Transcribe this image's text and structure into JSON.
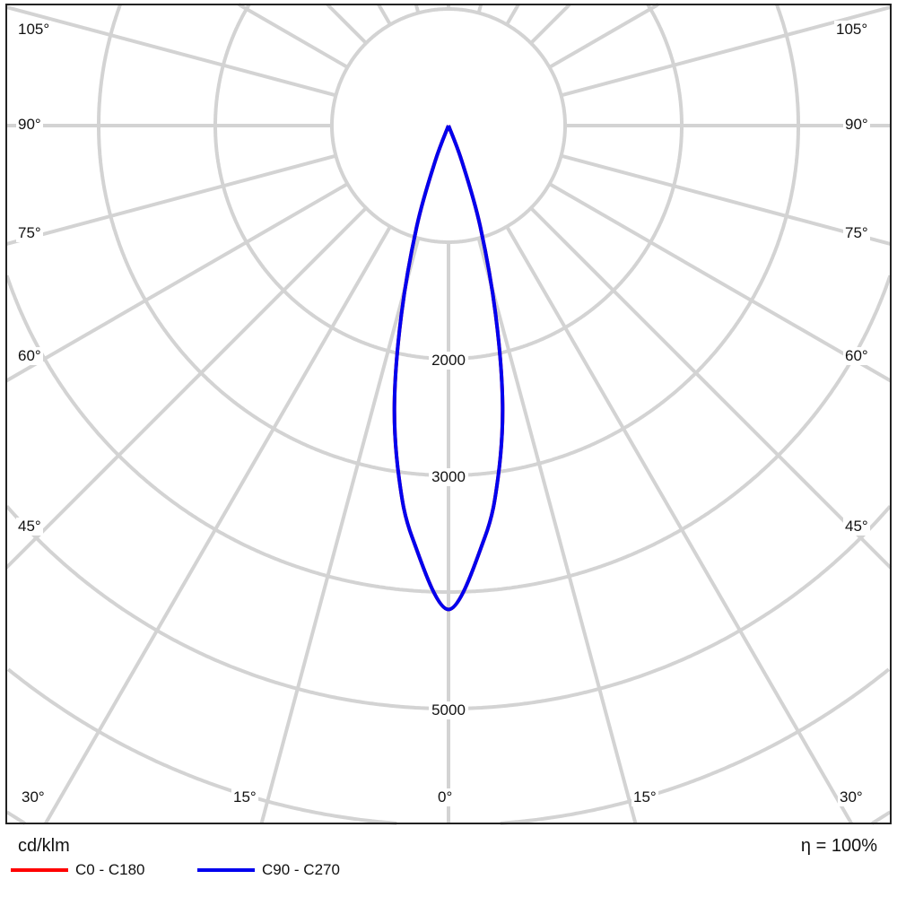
{
  "chart_data": {
    "type": "polar",
    "unit_label": "cd/klm",
    "efficiency_label": "η = 100%",
    "angle_step_deg": 15,
    "ring_step": 1000,
    "ring_labels": [
      "2000",
      "3000",
      "5000"
    ],
    "ring_label_values": [
      2000,
      3000,
      5000
    ],
    "angle_labels": {
      "left": [
        "105°",
        "90°",
        "75°",
        "60°",
        "45°",
        "30°",
        "15°"
      ],
      "center": "0°",
      "right": [
        "105°",
        "90°",
        "75°",
        "60°",
        "45°",
        "30°",
        "15°"
      ]
    },
    "grid": true,
    "legend_placement": "bottom-left",
    "series": [
      {
        "name": "C0 - C180",
        "color": "#ff0000",
        "angles": [
          0,
          5,
          8,
          11,
          14,
          17.5,
          20.5,
          23
        ],
        "values": [
          4150,
          3550,
          3050,
          2430,
          1670,
          900,
          330,
          0
        ]
      },
      {
        "name": "C90 - C270",
        "color": "#0000ee",
        "angles": [
          0,
          5,
          8,
          11,
          14,
          17.5,
          20.5,
          23
        ],
        "values": [
          4150,
          3550,
          3050,
          2430,
          1670,
          900,
          330,
          0
        ]
      }
    ]
  }
}
